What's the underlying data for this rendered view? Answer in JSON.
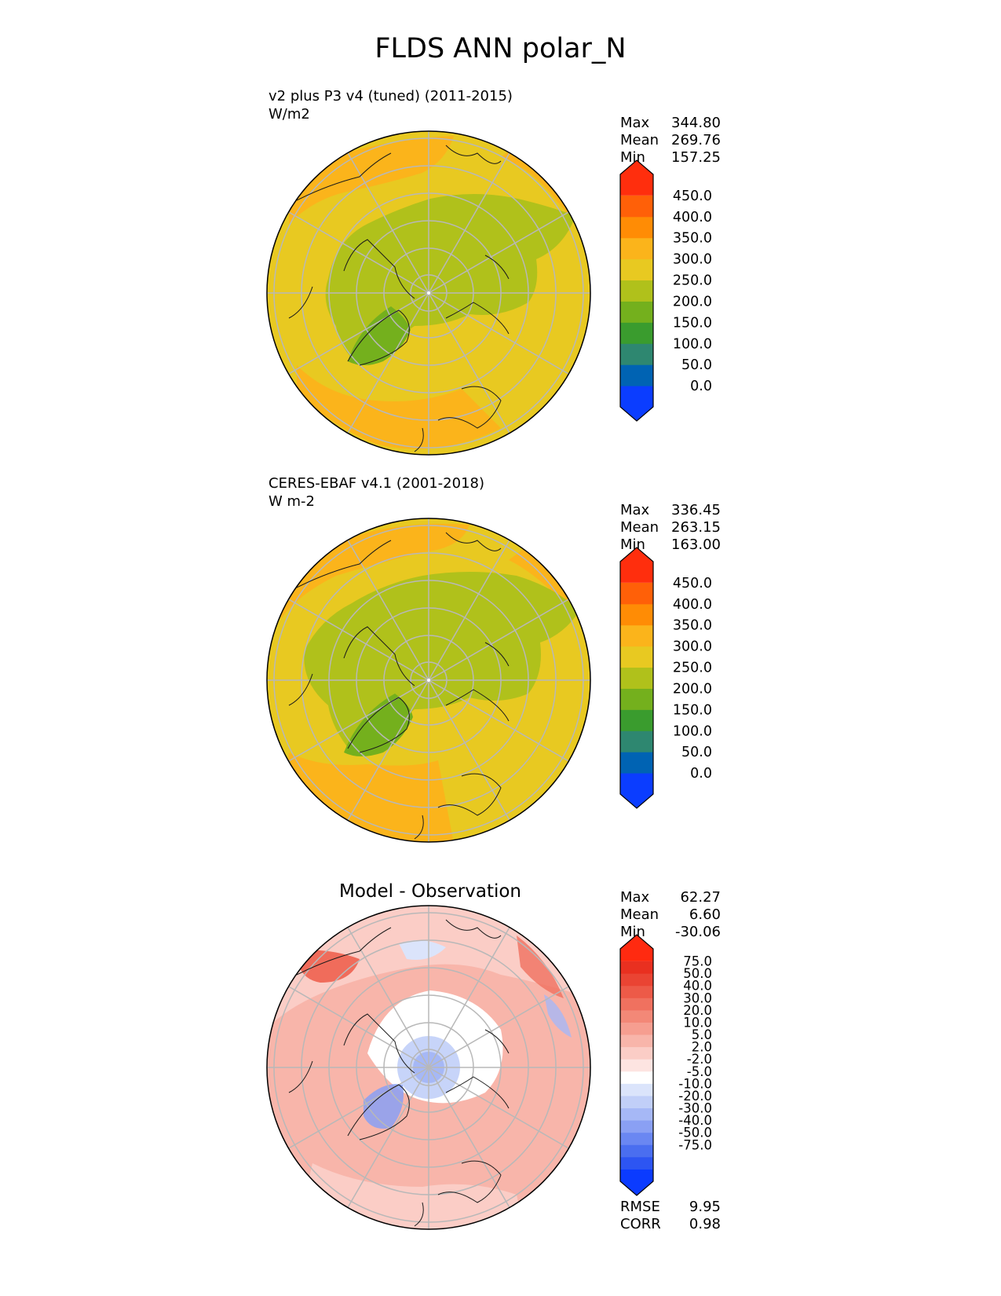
{
  "title": "FLDS ANN polar_N",
  "panels": [
    {
      "id": "model",
      "title_line1": "v2 plus P3 v4 (tuned) (2011-2015)",
      "title_line2": "W/m2",
      "stats": [
        {
          "label": "Max",
          "value": "344.80"
        },
        {
          "label": "Mean",
          "value": "269.76"
        },
        {
          "label": "Min",
          "value": "157.25"
        }
      ],
      "colorbar": {
        "colors": [
          "#0b3dff",
          "#0063b3",
          "#2e8770",
          "#3a9c2e",
          "#74b01d",
          "#b0c11b",
          "#e8c921",
          "#fbb41b",
          "#ff8c05",
          "#ff6008",
          "#ff2e0d"
        ],
        "tick_labels": [
          "450.0",
          "400.0",
          "350.0",
          "300.0",
          "250.0",
          "200.0",
          "150.0",
          "100.0",
          "50.0",
          "0.0"
        ]
      }
    },
    {
      "id": "obs",
      "title_line1": "CERES-EBAF v4.1 (2001-2018)",
      "title_line2": "W m-2",
      "stats": [
        {
          "label": "Max",
          "value": "336.45"
        },
        {
          "label": "Mean",
          "value": "263.15"
        },
        {
          "label": "Min",
          "value": "163.00"
        }
      ],
      "colorbar": {
        "colors": [
          "#0b3dff",
          "#0063b3",
          "#2e8770",
          "#3a9c2e",
          "#74b01d",
          "#b0c11b",
          "#e8c921",
          "#fbb41b",
          "#ff8c05",
          "#ff6008",
          "#ff2e0d"
        ],
        "tick_labels": [
          "450.0",
          "400.0",
          "350.0",
          "300.0",
          "250.0",
          "200.0",
          "150.0",
          "100.0",
          "50.0",
          "0.0"
        ]
      }
    },
    {
      "id": "diff",
      "title": "Model - Observation",
      "stats": [
        {
          "label": "Max",
          "value": "62.27"
        },
        {
          "label": "Mean",
          "value": "6.60"
        },
        {
          "label": "Min",
          "value": "-30.06"
        }
      ],
      "extra_stats": [
        {
          "label": "RMSE",
          "value": "9.95"
        },
        {
          "label": "CORR",
          "value": "0.98"
        }
      ],
      "colorbar": {
        "colors": [
          "#0b3bff",
          "#2d55f2",
          "#4a6ef0",
          "#6a87f2",
          "#8aa0f4",
          "#a6b8f6",
          "#c1cff8",
          "#dbe4fb",
          "#ffffff",
          "#fde4e1",
          "#fbcdc6",
          "#f8b5aa",
          "#f69e90",
          "#f38877",
          "#f0715f",
          "#ed5a48",
          "#ea4433",
          "#e93020",
          "#ff2a10"
        ],
        "tick_labels": [
          "75.0",
          "50.0",
          "40.0",
          "30.0",
          "20.0",
          "10.0",
          "5.0",
          "2.0",
          "-2.0",
          "-5.0",
          "-10.0",
          "-20.0",
          "-30.0",
          "-40.0",
          "-50.0",
          "-75.0"
        ]
      }
    }
  ]
}
